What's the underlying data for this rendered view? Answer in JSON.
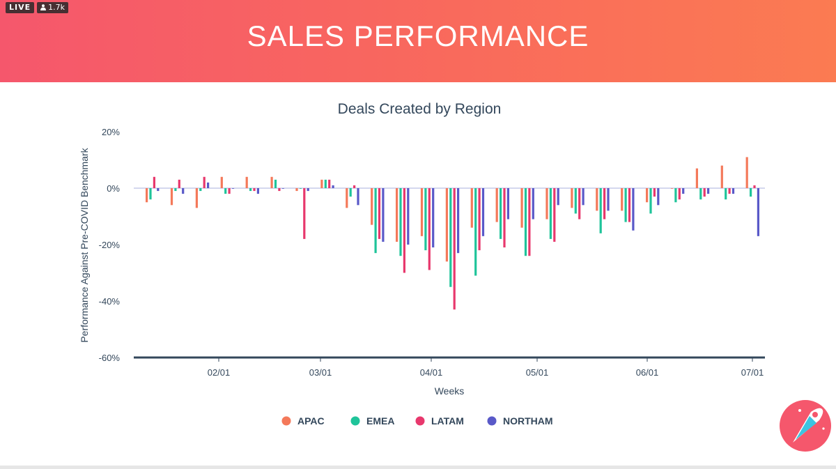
{
  "live_badge": {
    "label": "LIVE",
    "viewers": "1.7k"
  },
  "header": {
    "title": "SALES PERFORMANCE"
  },
  "colors": {
    "APAC": "#f4795a",
    "EMEA": "#1fc49a",
    "LATAM": "#e8386d",
    "NORTHAM": "#5959c8",
    "axis": "#33475b",
    "zero_line": "#c5cae9"
  },
  "chart_data": {
    "type": "bar",
    "title": "Deals Created by Region",
    "xlabel": "Weeks",
    "ylabel": "Performance Against Pre-COVID Benchmark",
    "ylim": [
      -60,
      20
    ],
    "yticks": [
      "20%",
      "0%",
      "-20%",
      "-40%",
      "-60%"
    ],
    "xticks": [
      "02/01",
      "03/01",
      "04/01",
      "05/01",
      "06/01",
      "07/01"
    ],
    "legend_position": "bottom",
    "categories": [
      "01/13",
      "01/20",
      "01/27",
      "02/03",
      "02/10",
      "02/17",
      "02/24",
      "03/02",
      "03/09",
      "03/16",
      "03/23",
      "03/30",
      "04/06",
      "04/13",
      "04/20",
      "04/27",
      "05/04",
      "05/11",
      "05/18",
      "05/25",
      "06/01",
      "06/08",
      "06/15",
      "06/22",
      "06/29"
    ],
    "series": [
      {
        "name": "APAC",
        "values": [
          -5,
          -6,
          -7,
          4,
          4,
          4,
          -1,
          3,
          -7,
          -13,
          -19,
          -17,
          -26,
          -14,
          -12,
          -14,
          -11,
          -7,
          -8,
          -8,
          -5,
          0,
          7,
          8,
          11
        ]
      },
      {
        "name": "EMEA",
        "values": [
          -4,
          -1,
          -1,
          -2,
          -1,
          3,
          0,
          3,
          -3,
          -23,
          -24,
          -22,
          -35,
          -31,
          -18,
          -24,
          -18,
          -9,
          -16,
          -12,
          -9,
          -5,
          -4,
          -4,
          -3
        ]
      },
      {
        "name": "LATAM",
        "values": [
          4,
          3,
          4,
          -2,
          -1,
          -1,
          -18,
          3,
          1,
          -18,
          -30,
          -29,
          -43,
          -22,
          -21,
          -24,
          -19,
          -11,
          -11,
          -12,
          -3,
          -4,
          -3,
          -2,
          1
        ]
      },
      {
        "name": "NORTHAM",
        "values": [
          -1,
          -2,
          2,
          0,
          -2,
          0,
          -1,
          1,
          -6,
          -19,
          -20,
          -21,
          -23,
          -17,
          -11,
          -11,
          -6,
          -6,
          -8,
          -15,
          -6,
          -2,
          -2,
          -2,
          -17
        ]
      }
    ]
  }
}
